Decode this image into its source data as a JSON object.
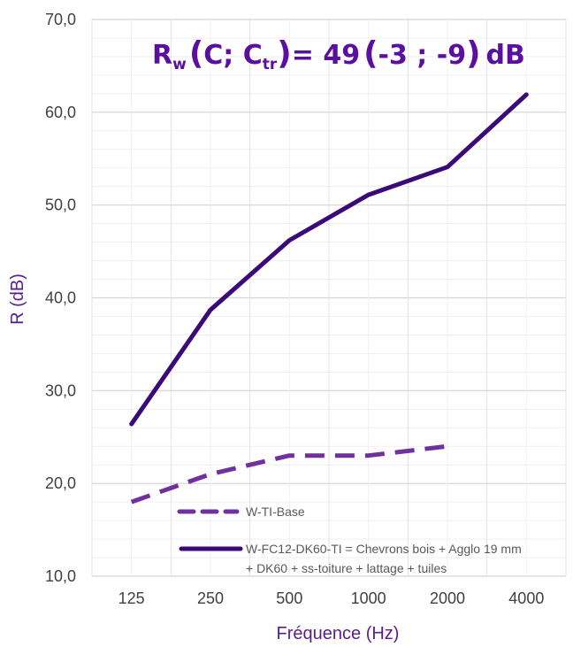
{
  "chart_data": {
    "type": "line",
    "x": [
      "125",
      "250",
      "500",
      "1000",
      "2000",
      "4000"
    ],
    "xlabel": "Fréquence (Hz)",
    "ylabel": "R (dB)",
    "ylim": [
      10,
      70
    ],
    "y_ticks": [
      "10,0",
      "20,0",
      "30,0",
      "40,0",
      "50,0",
      "60,0",
      "70,0"
    ],
    "grid": true,
    "annotation": {
      "r": "R",
      "w": "w",
      "open1": "(",
      "c": "C; C",
      "tr": "tr",
      "close1": ")",
      "value": "= 49",
      "open2": "(",
      "terms": "-3 ; -9",
      "close2": ")",
      "unit": "dB",
      "color": "#5a0fa0"
    },
    "series": [
      {
        "name": "W-TI-Base",
        "values": [
          18.0,
          21.0,
          23.0,
          23.0,
          24.0,
          null
        ],
        "color": "#7030a0",
        "dashed": true
      },
      {
        "name_line1": "W-FC12-DK60-TI = Chevrons bois + Agglo 19 mm",
        "name_line2": "+ DK60 + ss-toiture + lattage + tuiles",
        "values": [
          26.4,
          38.7,
          46.2,
          51.1,
          54.1,
          61.9
        ],
        "color": "#3c0a78",
        "dashed": false
      }
    ]
  }
}
